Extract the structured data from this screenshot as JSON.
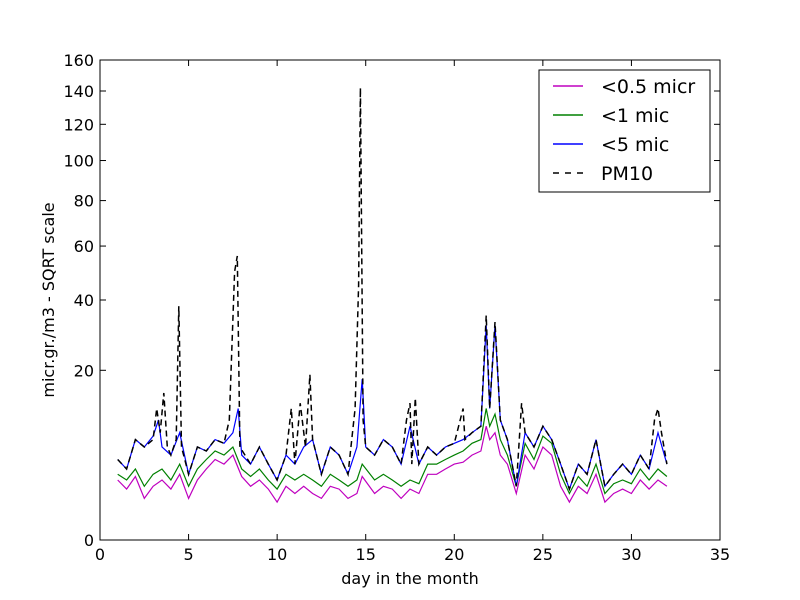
{
  "chart_data": {
    "type": "line",
    "title": "",
    "xlabel": "day in the month",
    "ylabel": "micr.gr./m3 - SQRT scale",
    "xlim": [
      0,
      35
    ],
    "ylim": [
      0,
      160
    ],
    "yscale": "sqrt",
    "grid": false,
    "legend_position": "top-right",
    "x_ticks": [
      0,
      5,
      10,
      15,
      20,
      25,
      30,
      35
    ],
    "y_ticks": [
      0,
      20,
      40,
      60,
      80,
      100,
      120,
      140,
      160
    ],
    "series": [
      {
        "name": "<0.5 micr",
        "color": "#bf00bf",
        "dash": "solid",
        "points": [
          [
            1,
            2.5
          ],
          [
            1.5,
            1.8
          ],
          [
            2,
            2.8
          ],
          [
            2.5,
            1.2
          ],
          [
            3,
            2
          ],
          [
            3.5,
            2.5
          ],
          [
            4,
            1.8
          ],
          [
            4.5,
            3
          ],
          [
            5,
            1.2
          ],
          [
            5.5,
            2.5
          ],
          [
            6,
            3.5
          ],
          [
            6.5,
            4.5
          ],
          [
            7,
            4
          ],
          [
            7.5,
            5
          ],
          [
            8,
            2.8
          ],
          [
            8.5,
            2
          ],
          [
            9,
            2.5
          ],
          [
            9.5,
            1.8
          ],
          [
            10,
            1
          ],
          [
            10.5,
            2
          ],
          [
            11,
            1.5
          ],
          [
            11.5,
            2
          ],
          [
            12,
            1.5
          ],
          [
            12.5,
            1.2
          ],
          [
            13,
            2
          ],
          [
            13.5,
            1.8
          ],
          [
            14,
            1.2
          ],
          [
            14.5,
            1.5
          ],
          [
            14.8,
            2.8
          ],
          [
            15.5,
            1.5
          ],
          [
            16,
            2
          ],
          [
            16.5,
            1.8
          ],
          [
            17,
            1.2
          ],
          [
            17.5,
            1.8
          ],
          [
            18,
            1.5
          ],
          [
            18.5,
            3
          ],
          [
            19,
            3
          ],
          [
            19.5,
            3.5
          ],
          [
            20,
            4
          ],
          [
            20.5,
            4.2
          ],
          [
            21,
            5
          ],
          [
            21.5,
            5.5
          ],
          [
            21.8,
            9
          ],
          [
            22,
            7
          ],
          [
            22.3,
            8
          ],
          [
            22.6,
            5
          ],
          [
            23,
            4
          ],
          [
            23.5,
            1.5
          ],
          [
            24,
            5
          ],
          [
            24.5,
            3.5
          ],
          [
            25,
            6
          ],
          [
            25.5,
            5
          ],
          [
            26,
            2
          ],
          [
            26.5,
            1
          ],
          [
            27,
            2
          ],
          [
            27.5,
            1.5
          ],
          [
            28,
            3
          ],
          [
            28.5,
            1
          ],
          [
            29,
            1.5
          ],
          [
            29.5,
            1.8
          ],
          [
            30,
            1.5
          ],
          [
            30.5,
            2.5
          ],
          [
            31,
            1.8
          ],
          [
            31.5,
            2.5
          ],
          [
            32,
            2
          ]
        ]
      },
      {
        "name": "<1 mic",
        "color": "#008000",
        "dash": "solid",
        "points": [
          [
            1,
            3
          ],
          [
            1.5,
            2.5
          ],
          [
            2,
            3.5
          ],
          [
            2.5,
            2
          ],
          [
            3,
            3
          ],
          [
            3.5,
            3.5
          ],
          [
            4,
            2.5
          ],
          [
            4.5,
            4
          ],
          [
            5,
            2
          ],
          [
            5.5,
            3.5
          ],
          [
            6,
            4.5
          ],
          [
            6.5,
            5.5
          ],
          [
            7,
            5
          ],
          [
            7.5,
            6
          ],
          [
            8,
            3.5
          ],
          [
            8.5,
            2.8
          ],
          [
            9,
            3.5
          ],
          [
            9.5,
            2.5
          ],
          [
            10,
            1.8
          ],
          [
            10.5,
            3
          ],
          [
            11,
            2.5
          ],
          [
            11.5,
            3
          ],
          [
            12,
            2.5
          ],
          [
            12.5,
            2
          ],
          [
            13,
            3
          ],
          [
            13.5,
            2.5
          ],
          [
            14,
            2
          ],
          [
            14.5,
            2.5
          ],
          [
            14.8,
            4
          ],
          [
            15.5,
            2.5
          ],
          [
            16,
            3
          ],
          [
            16.5,
            2.5
          ],
          [
            17,
            2
          ],
          [
            17.5,
            2.5
          ],
          [
            18,
            2.2
          ],
          [
            18.5,
            4
          ],
          [
            19,
            4
          ],
          [
            19.5,
            4.5
          ],
          [
            20,
            5
          ],
          [
            20.5,
            5.5
          ],
          [
            21,
            6.5
          ],
          [
            21.5,
            7
          ],
          [
            21.8,
            12
          ],
          [
            22,
            9
          ],
          [
            22.3,
            11
          ],
          [
            22.6,
            7
          ],
          [
            23,
            5
          ],
          [
            23.5,
            2
          ],
          [
            24,
            6.5
          ],
          [
            24.5,
            4.5
          ],
          [
            25,
            7.5
          ],
          [
            25.5,
            6.5
          ],
          [
            26,
            3
          ],
          [
            26.5,
            1.5
          ],
          [
            27,
            2.8
          ],
          [
            27.5,
            2
          ],
          [
            28,
            4
          ],
          [
            28.5,
            1.5
          ],
          [
            29,
            2.2
          ],
          [
            29.5,
            2.5
          ],
          [
            30,
            2.2
          ],
          [
            30.5,
            3.5
          ],
          [
            31,
            2.5
          ],
          [
            31.5,
            3.5
          ],
          [
            32,
            2.8
          ]
        ]
      },
      {
        "name": "<5 mic",
        "color": "#0000ff",
        "dash": "solid",
        "points": [
          [
            1,
            4.5
          ],
          [
            1.5,
            3.5
          ],
          [
            2,
            7
          ],
          [
            2.5,
            6
          ],
          [
            3,
            7.5
          ],
          [
            3.3,
            10
          ],
          [
            3.5,
            6
          ],
          [
            4,
            5
          ],
          [
            4.5,
            8
          ],
          [
            5,
            3
          ],
          [
            5.5,
            6
          ],
          [
            6,
            5.5
          ],
          [
            6.5,
            7
          ],
          [
            7,
            6.5
          ],
          [
            7.5,
            8
          ],
          [
            7.8,
            12
          ],
          [
            8,
            5
          ],
          [
            8.5,
            4
          ],
          [
            9,
            6
          ],
          [
            9.5,
            4
          ],
          [
            10,
            2.5
          ],
          [
            10.5,
            5
          ],
          [
            11,
            4
          ],
          [
            11.5,
            6
          ],
          [
            12,
            7
          ],
          [
            12.5,
            3
          ],
          [
            13,
            6
          ],
          [
            13.5,
            5
          ],
          [
            14,
            3
          ],
          [
            14.5,
            6
          ],
          [
            14.8,
            18
          ],
          [
            15,
            6
          ],
          [
            15.5,
            5
          ],
          [
            16,
            7
          ],
          [
            16.5,
            6
          ],
          [
            17,
            4
          ],
          [
            17.5,
            9
          ],
          [
            18,
            4
          ],
          [
            18.5,
            6
          ],
          [
            19,
            5
          ],
          [
            19.5,
            6
          ],
          [
            20,
            6.5
          ],
          [
            20.5,
            7
          ],
          [
            21,
            8
          ],
          [
            21.5,
            9
          ],
          [
            21.8,
            32
          ],
          [
            22,
            12
          ],
          [
            22.3,
            32
          ],
          [
            22.6,
            10
          ],
          [
            23,
            7
          ],
          [
            23.5,
            2
          ],
          [
            24,
            8
          ],
          [
            24.5,
            6
          ],
          [
            25,
            9
          ],
          [
            25.5,
            7
          ],
          [
            26,
            4
          ],
          [
            26.5,
            1.8
          ],
          [
            27,
            4
          ],
          [
            27.5,
            3
          ],
          [
            28,
            7
          ],
          [
            28.5,
            2
          ],
          [
            29,
            3
          ],
          [
            29.5,
            4
          ],
          [
            30,
            3
          ],
          [
            30.5,
            5
          ],
          [
            31,
            3.5
          ],
          [
            31.5,
            8
          ],
          [
            32,
            4
          ]
        ]
      },
      {
        "name": "PM10",
        "color": "#000000",
        "dash": "dashed",
        "points": [
          [
            1,
            4.5
          ],
          [
            1.5,
            3.5
          ],
          [
            2,
            7
          ],
          [
            2.5,
            6
          ],
          [
            3,
            7
          ],
          [
            3.2,
            12
          ],
          [
            3.4,
            8
          ],
          [
            3.6,
            15
          ],
          [
            3.8,
            6
          ],
          [
            4,
            5
          ],
          [
            4.3,
            7
          ],
          [
            4.45,
            38
          ],
          [
            4.6,
            6
          ],
          [
            5,
            3
          ],
          [
            5.5,
            6
          ],
          [
            6,
            5.5
          ],
          [
            6.5,
            7
          ],
          [
            7,
            6.5
          ],
          [
            7.3,
            10
          ],
          [
            7.6,
            50
          ],
          [
            7.75,
            56
          ],
          [
            7.9,
            6
          ],
          [
            8.5,
            4
          ],
          [
            9,
            6
          ],
          [
            9.5,
            4
          ],
          [
            10,
            2.5
          ],
          [
            10.5,
            5
          ],
          [
            10.8,
            12
          ],
          [
            11,
            4
          ],
          [
            11.3,
            13
          ],
          [
            11.6,
            6
          ],
          [
            11.85,
            19
          ],
          [
            12,
            7
          ],
          [
            12.5,
            3
          ],
          [
            13,
            6
          ],
          [
            13.5,
            5
          ],
          [
            14,
            3
          ],
          [
            14.4,
            12
          ],
          [
            14.6,
            45
          ],
          [
            14.7,
            142
          ],
          [
            14.85,
            10
          ],
          [
            15,
            6
          ],
          [
            15.5,
            5
          ],
          [
            16,
            7
          ],
          [
            16.5,
            6
          ],
          [
            17,
            4
          ],
          [
            17.3,
            10
          ],
          [
            17.5,
            13
          ],
          [
            17.6,
            4
          ],
          [
            17.8,
            14
          ],
          [
            18,
            4
          ],
          [
            18.5,
            6
          ],
          [
            19,
            5
          ],
          [
            19.5,
            6
          ],
          [
            20,
            6.5
          ],
          [
            20.5,
            12
          ],
          [
            20.6,
            7
          ],
          [
            21,
            8
          ],
          [
            21.5,
            9
          ],
          [
            21.8,
            35
          ],
          [
            22,
            12
          ],
          [
            22.3,
            33
          ],
          [
            22.6,
            10
          ],
          [
            23,
            7
          ],
          [
            23.5,
            2
          ],
          [
            23.8,
            13
          ],
          [
            24,
            8
          ],
          [
            24.5,
            6
          ],
          [
            25,
            9
          ],
          [
            25.5,
            7
          ],
          [
            26,
            4
          ],
          [
            26.5,
            1.8
          ],
          [
            27,
            4
          ],
          [
            27.5,
            3
          ],
          [
            28,
            7
          ],
          [
            28.5,
            2
          ],
          [
            29,
            3
          ],
          [
            29.5,
            4
          ],
          [
            30,
            3
          ],
          [
            30.5,
            5
          ],
          [
            31,
            3.5
          ],
          [
            31.3,
            10
          ],
          [
            31.5,
            12
          ],
          [
            31.7,
            8
          ],
          [
            32,
            4
          ]
        ]
      }
    ]
  }
}
